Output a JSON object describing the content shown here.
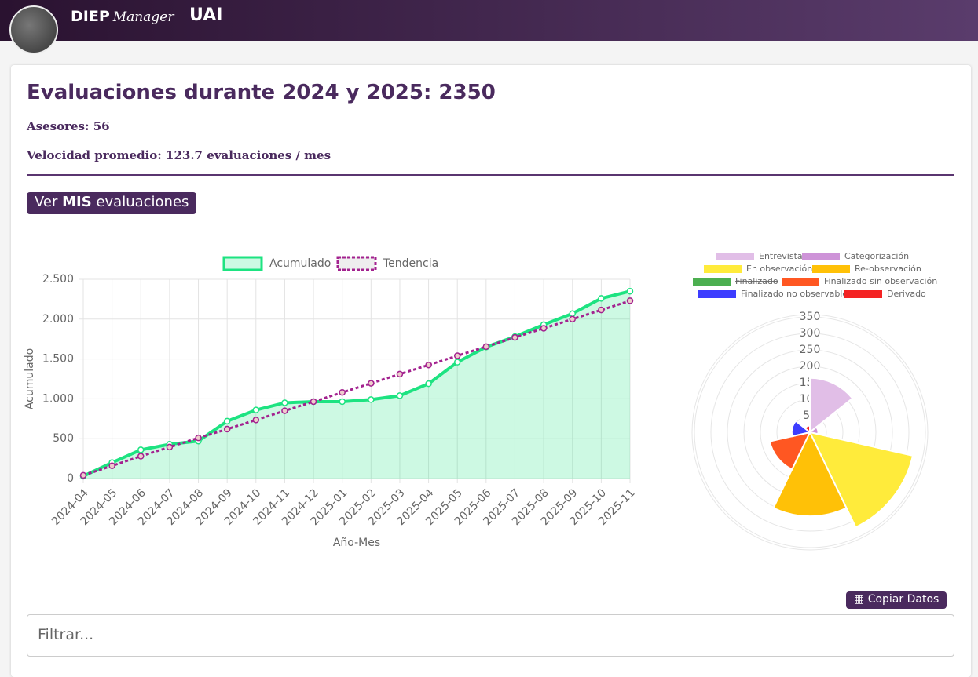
{
  "header": {
    "brand_bold": "DIEP",
    "brand_script": "Manager",
    "org": "UAI"
  },
  "summary": {
    "title": "Evaluaciones durante 2024 y 2025: 2350",
    "advisors": "Asesores: 56",
    "speed": "Velocidad promedio: 123.7 evaluaciones / mes"
  },
  "my_button": {
    "prefix": "Ver",
    "bold": "MIS",
    "suffix": "evaluaciones"
  },
  "copy_button": "Copiar Datos",
  "filter_placeholder": "Filtrar...",
  "chart_data": [
    {
      "type": "line",
      "categories": [
        "2024-04",
        "2024-05",
        "2024-06",
        "2024-07",
        "2024-08",
        "2024-09",
        "2024-10",
        "2024-11",
        "2024-12",
        "2025-01",
        "2025-02",
        "2025-03",
        "2025-04",
        "2025-05",
        "2025-06",
        "2025-07",
        "2025-08",
        "2025-09",
        "2025-10",
        "2025-11"
      ],
      "series": [
        {
          "name": "Acumulado",
          "color": "#1de381",
          "fill": true,
          "dashed": false,
          "values": [
            30,
            200,
            360,
            430,
            470,
            720,
            860,
            950,
            965,
            965,
            990,
            1040,
            1190,
            1460,
            1650,
            1780,
            1930,
            2070,
            2260,
            2350
          ]
        },
        {
          "name": "Tendencia",
          "color": "#a3228f",
          "fill": false,
          "dashed": true,
          "values": [
            40,
            160,
            280,
            395,
            510,
            620,
            735,
            850,
            965,
            1080,
            1195,
            1310,
            1425,
            1540,
            1655,
            1770,
            1885,
            2000,
            2115,
            2230
          ]
        }
      ],
      "ylim": [
        0,
        2500
      ],
      "yticks": [
        0,
        500,
        {
          "value": 1000,
          "label": "1.000"
        },
        {
          "value": 1500,
          "label": "1.500"
        },
        {
          "value": 2000,
          "label": "2.000"
        },
        {
          "value": 2500,
          "label": "2.500"
        }
      ],
      "y_label": "Acumulado",
      "x_label": "Año-Mes",
      "grid": true
    },
    {
      "type": "polarArea",
      "categories": [
        "Entrevista",
        "Categorización",
        "En observación",
        "Re-observación",
        "Finalizado",
        "Finalizado sin observación",
        "Finalizado no observable",
        "Derivado"
      ],
      "values": [
        165,
        25,
        320,
        255,
        null,
        125,
        55,
        20
      ],
      "colors": [
        "#e1bee7",
        "#ce93d8",
        "#ffeb3b",
        "#ffc107",
        "#4caf50",
        "#ff5722",
        "#3d3dff",
        "#f42323"
      ],
      "hidden": [
        false,
        false,
        false,
        false,
        true,
        false,
        false,
        false
      ],
      "rlim": [
        0,
        350
      ],
      "rticks": [
        50,
        100,
        150,
        200,
        250,
        300,
        350
      ]
    }
  ]
}
